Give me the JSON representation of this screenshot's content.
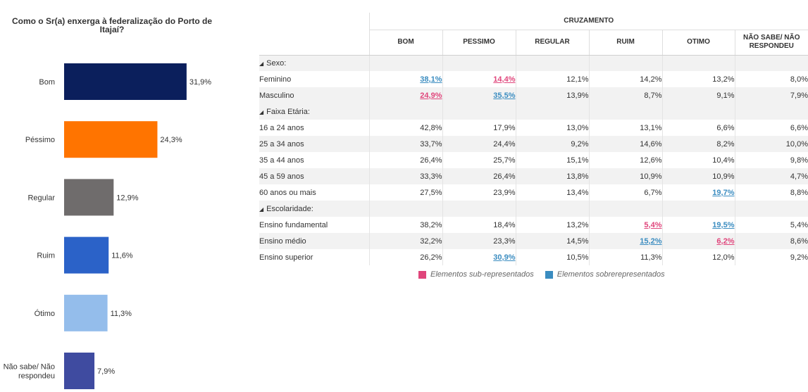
{
  "chart_data": {
    "type": "bar",
    "orientation": "horizontal",
    "title": "Como o Sr(a) enxerga à federalização do Porto de Itajaí?",
    "categories": [
      "Bom",
      "Péssimo",
      "Regular",
      "Ruim",
      "Ótimo",
      "Não sabe/ Não respondeu"
    ],
    "category_lines": [
      [
        "Bom"
      ],
      [
        "Péssimo"
      ],
      [
        "Regular"
      ],
      [
        "Ruim"
      ],
      [
        "Ótimo"
      ],
      [
        "Não sabe/ Não",
        "respondeu"
      ]
    ],
    "values": [
      31.9,
      24.3,
      12.9,
      11.6,
      11.3,
      7.9
    ],
    "value_labels": [
      "31,9%",
      "24,3%",
      "12,9%",
      "11,6%",
      "11,3%",
      "7,9%"
    ],
    "colors": [
      "#0b1f5c",
      "#ff7400",
      "#6f6c6c",
      "#2b62c8",
      "#94bdeb",
      "#3f4ba0"
    ],
    "grid": false,
    "legend": "none"
  },
  "table": {
    "group_header": "CRUZAMENTO",
    "columns": [
      "BOM",
      "PESSIMO",
      "REGULAR",
      "RUIM",
      "OTIMO",
      "NÃO SABE/ NÃO RESPONDEU"
    ],
    "column_lines": [
      [
        "BOM"
      ],
      [
        "PESSIMO"
      ],
      [
        "REGULAR"
      ],
      [
        "RUIM"
      ],
      [
        "OTIMO"
      ],
      [
        "NÃO SABE/ NÃO",
        "RESPONDEU"
      ]
    ],
    "sections": [
      {
        "label": "Sexo:",
        "rows": [
          {
            "label": "Feminino",
            "cells": [
              {
                "v": "38,1%",
                "s": "over"
              },
              {
                "v": "14,4%",
                "s": "under"
              },
              {
                "v": "12,1%"
              },
              {
                "v": "14,2%"
              },
              {
                "v": "13,2%"
              },
              {
                "v": "8,0%"
              }
            ]
          },
          {
            "label": "Masculino",
            "cells": [
              {
                "v": "24,9%",
                "s": "under"
              },
              {
                "v": "35,5%",
                "s": "over"
              },
              {
                "v": "13,9%"
              },
              {
                "v": "8,7%"
              },
              {
                "v": "9,1%"
              },
              {
                "v": "7,9%"
              }
            ]
          }
        ]
      },
      {
        "label": "Faixa Etária:",
        "rows": [
          {
            "label": "16 a 24 anos",
            "cells": [
              {
                "v": "42,8%"
              },
              {
                "v": "17,9%"
              },
              {
                "v": "13,0%"
              },
              {
                "v": "13,1%"
              },
              {
                "v": "6,6%"
              },
              {
                "v": "6,6%"
              }
            ]
          },
          {
            "label": "25 a 34 anos",
            "cells": [
              {
                "v": "33,7%"
              },
              {
                "v": "24,4%"
              },
              {
                "v": "9,2%"
              },
              {
                "v": "14,6%"
              },
              {
                "v": "8,2%"
              },
              {
                "v": "10,0%"
              }
            ]
          },
          {
            "label": "35 a 44 anos",
            "cells": [
              {
                "v": "26,4%"
              },
              {
                "v": "25,7%"
              },
              {
                "v": "15,1%"
              },
              {
                "v": "12,6%"
              },
              {
                "v": "10,4%"
              },
              {
                "v": "9,8%"
              }
            ]
          },
          {
            "label": "45 a 59 anos",
            "cells": [
              {
                "v": "33,3%"
              },
              {
                "v": "26,4%"
              },
              {
                "v": "13,8%"
              },
              {
                "v": "10,9%"
              },
              {
                "v": "10,9%"
              },
              {
                "v": "4,7%"
              }
            ]
          },
          {
            "label": "60 anos ou mais",
            "cells": [
              {
                "v": "27,5%"
              },
              {
                "v": "23,9%"
              },
              {
                "v": "13,4%"
              },
              {
                "v": "6,7%"
              },
              {
                "v": "19,7%",
                "s": "over"
              },
              {
                "v": "8,8%"
              }
            ]
          }
        ]
      },
      {
        "label": "Escolaridade:",
        "rows": [
          {
            "label": "Ensino fundamental",
            "cells": [
              {
                "v": "38,2%"
              },
              {
                "v": "18,4%"
              },
              {
                "v": "13,2%"
              },
              {
                "v": "5,4%",
                "s": "under"
              },
              {
                "v": "19,5%",
                "s": "over"
              },
              {
                "v": "5,4%"
              }
            ]
          },
          {
            "label": "Ensino médio",
            "cells": [
              {
                "v": "32,2%"
              },
              {
                "v": "23,3%"
              },
              {
                "v": "14,5%"
              },
              {
                "v": "15,2%",
                "s": "over"
              },
              {
                "v": "6,2%",
                "s": "under"
              },
              {
                "v": "8,6%"
              }
            ]
          },
          {
            "label": "Ensino superior",
            "cells": [
              {
                "v": "26,2%"
              },
              {
                "v": "30,9%",
                "s": "over"
              },
              {
                "v": "10,5%"
              },
              {
                "v": "11,3%"
              },
              {
                "v": "12,0%"
              },
              {
                "v": "9,2%"
              }
            ]
          }
        ]
      }
    ]
  },
  "legend": {
    "under_label": "Elementos sub-representados",
    "under_color": "#e0457b",
    "over_label": "Elementos sobrerepresentados",
    "over_color": "#3a8cc0"
  },
  "icons": {
    "section_toggle": "collapse-triangle-icon"
  }
}
